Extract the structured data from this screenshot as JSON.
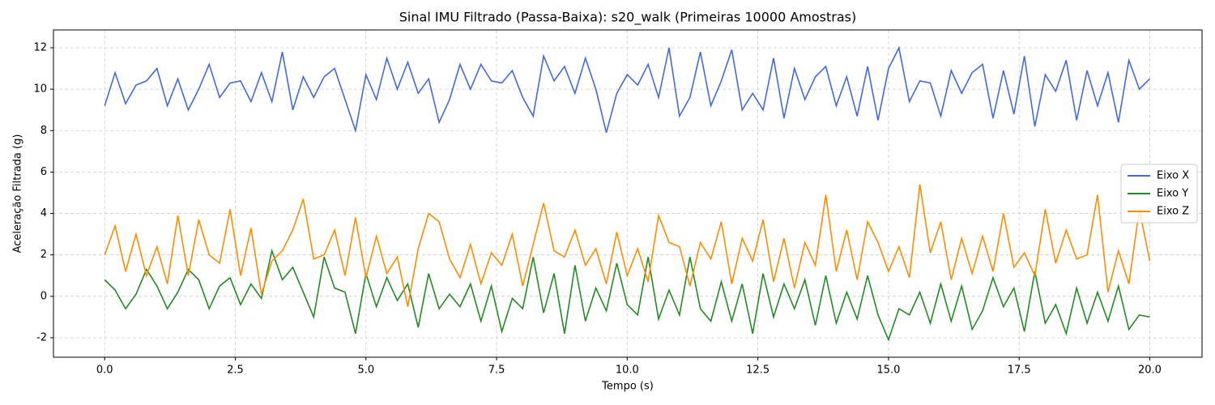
{
  "chart_data": {
    "type": "line",
    "title": "Sinal IMU Filtrado (Passa-Baixa): s20_walk (Primeiras 10000 Amostras)",
    "x_label": "Tempo (s)",
    "y_label": "Aceleração Filtrada (g)",
    "x": [
      0,
      0.2,
      0.4,
      0.6,
      0.8,
      1,
      1.2,
      1.4,
      1.6,
      1.8,
      2,
      2.2,
      2.4,
      2.6,
      2.8,
      3,
      3.2,
      3.4,
      3.6,
      3.8,
      4,
      4.2,
      4.4,
      4.6,
      4.8,
      5,
      5.2,
      5.4,
      5.6,
      5.8,
      6,
      6.2,
      6.4,
      6.6,
      6.8,
      7,
      7.2,
      7.4,
      7.6,
      7.8,
      8,
      8.2,
      8.4,
      8.6,
      8.8,
      9,
      9.2,
      9.4,
      9.6,
      9.8,
      10,
      10.2,
      10.4,
      10.6,
      10.8,
      11,
      11.2,
      11.4,
      11.6,
      11.8,
      12,
      12.2,
      12.4,
      12.6,
      12.8,
      13,
      13.2,
      13.4,
      13.6,
      13.8,
      14,
      14.2,
      14.4,
      14.6,
      14.8,
      15,
      15.2,
      15.4,
      15.6,
      15.8,
      16,
      16.2,
      16.4,
      16.6,
      16.8,
      17,
      17.2,
      17.4,
      17.6,
      17.8,
      18,
      18.2,
      18.4,
      18.6,
      18.8,
      19,
      19.2,
      19.4,
      19.6,
      19.8,
      20
    ],
    "series": [
      {
        "name": "Eixo X",
        "color": "#4169e1",
        "values": [
          9.2,
          10.8,
          9.3,
          10.2,
          10.4,
          11.0,
          9.2,
          10.5,
          9.0,
          10.0,
          11.2,
          9.6,
          10.3,
          10.4,
          9.4,
          10.8,
          9.4,
          11.8,
          9.0,
          10.6,
          9.6,
          10.6,
          11.0,
          9.5,
          8.0,
          10.7,
          9.5,
          11.5,
          10.0,
          11.3,
          9.8,
          10.5,
          8.4,
          9.5,
          11.2,
          10.0,
          11.2,
          10.4,
          10.3,
          10.9,
          9.6,
          8.7,
          11.6,
          10.4,
          11.1,
          9.8,
          11.5,
          10.0,
          7.9,
          9.8,
          10.7,
          10.2,
          11.2,
          9.6,
          12.0,
          8.7,
          9.6,
          11.8,
          9.2,
          10.4,
          11.9,
          9.0,
          9.8,
          9.0,
          11.5,
          8.6,
          11.0,
          9.5,
          10.6,
          11.1,
          9.2,
          10.6,
          8.7,
          11.1,
          8.5,
          11.0,
          12.0,
          9.4,
          10.4,
          10.3,
          8.7,
          10.9,
          9.8,
          10.8,
          11.2,
          8.6,
          10.9,
          8.8,
          11.6,
          8.2,
          10.7,
          9.9,
          11.4,
          8.5,
          10.9,
          9.2,
          10.8,
          8.4,
          11.4,
          10.0,
          10.5
        ]
      },
      {
        "name": "Eixo Y",
        "color": "#228b22",
        "values": [
          0.8,
          0.3,
          -0.6,
          0.1,
          1.3,
          0.5,
          -0.6,
          0.2,
          1.3,
          0.8,
          -0.6,
          0.5,
          0.9,
          -0.4,
          0.6,
          -0.1,
          2.2,
          0.8,
          1.4,
          0.2,
          -1.0,
          1.9,
          0.4,
          0.2,
          -1.8,
          1.1,
          -0.5,
          0.9,
          -0.2,
          0.6,
          -1.5,
          1.1,
          -0.6,
          0.1,
          -0.5,
          0.6,
          -1.2,
          0.5,
          -1.7,
          -0.1,
          -0.6,
          1.9,
          -0.8,
          1.1,
          -1.8,
          1.5,
          -1.2,
          0.4,
          -0.7,
          1.6,
          -0.4,
          -0.9,
          1.9,
          -1.1,
          0.3,
          -0.9,
          1.9,
          -0.6,
          -1.2,
          0.7,
          -1.2,
          0.6,
          -1.8,
          1.1,
          -1.0,
          0.6,
          -0.6,
          0.8,
          -1.4,
          1.0,
          -1.3,
          0.2,
          -1.1,
          1.0,
          -0.9,
          -2.1,
          -0.6,
          -0.9,
          0.2,
          -1.3,
          0.6,
          -1.2,
          0.5,
          -1.6,
          -0.7,
          0.9,
          -0.5,
          0.4,
          -1.7,
          1.2,
          -1.3,
          -0.4,
          -1.8,
          0.4,
          -1.3,
          0.2,
          -1.2,
          0.5,
          -1.6,
          -0.9,
          -1.0
        ]
      },
      {
        "name": "Eixo Z",
        "color": "#ff8c00",
        "values": [
          2.0,
          3.4,
          1.2,
          3.0,
          1.0,
          2.4,
          0.6,
          3.9,
          1.0,
          3.7,
          2.0,
          1.6,
          4.2,
          1.0,
          3.3,
          0.1,
          1.7,
          2.2,
          3.2,
          4.7,
          1.8,
          2.0,
          3.2,
          1.0,
          3.8,
          0.9,
          2.9,
          1.1,
          1.9,
          -0.5,
          2.3,
          4.0,
          3.6,
          1.8,
          0.9,
          2.5,
          0.6,
          2.1,
          1.5,
          3.0,
          0.5,
          2.5,
          4.5,
          2.2,
          1.9,
          3.2,
          1.5,
          2.3,
          0.6,
          3.1,
          1.0,
          2.3,
          0.7,
          3.9,
          2.6,
          2.4,
          0.5,
          2.6,
          1.8,
          3.6,
          0.6,
          2.8,
          1.7,
          3.7,
          0.7,
          2.8,
          0.4,
          2.6,
          1.5,
          4.9,
          1.2,
          3.2,
          0.8,
          3.6,
          2.6,
          1.2,
          2.4,
          0.9,
          5.4,
          2.1,
          3.6,
          0.8,
          2.8,
          1.1,
          2.9,
          1.2,
          4.0,
          1.4,
          2.1,
          1.0,
          4.2,
          1.6,
          3.2,
          1.8,
          2.0,
          4.9,
          0.2,
          2.2,
          0.6,
          4.2,
          1.7
        ]
      }
    ],
    "xlim": [
      -0.98,
      21.0
    ],
    "ylim": [
      -2.94,
      12.86
    ],
    "xticks": [
      {
        "value": 0,
        "label": "0.0"
      },
      {
        "value": 2.5,
        "label": "2.5"
      },
      {
        "value": 5,
        "label": "5.0"
      },
      {
        "value": 7.5,
        "label": "7.5"
      },
      {
        "value": 10,
        "label": "10.0"
      },
      {
        "value": 12.5,
        "label": "12.5"
      },
      {
        "value": 15,
        "label": "15.0"
      },
      {
        "value": 17.5,
        "label": "17.5"
      },
      {
        "value": 20,
        "label": "20.0"
      }
    ],
    "yticks": [
      -2,
      0,
      2,
      4,
      6,
      8,
      10,
      12
    ],
    "grid": true,
    "legend": "center right"
  }
}
